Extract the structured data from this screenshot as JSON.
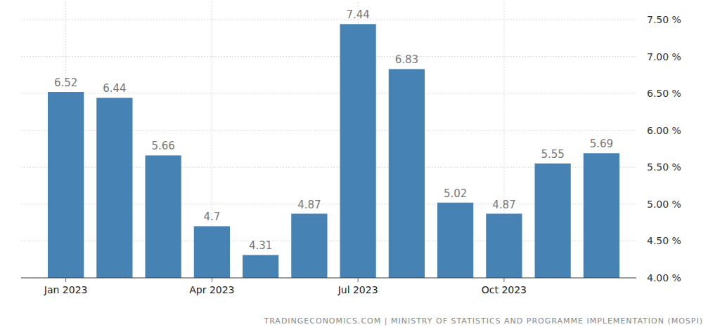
{
  "chart_data": {
    "type": "bar",
    "categories": [
      "Jan 2023",
      null,
      null,
      "Apr 2023",
      null,
      null,
      "Jul 2023",
      null,
      null,
      "Oct 2023",
      null,
      null
    ],
    "values": [
      6.52,
      6.44,
      5.66,
      4.7,
      4.31,
      4.87,
      7.44,
      6.83,
      5.02,
      4.87,
      5.55,
      5.69
    ],
    "color": "#4682b4",
    "ylim": [
      4,
      7.5
    ],
    "yticks": [
      {
        "value": 4,
        "label": "4.00 %"
      },
      {
        "value": 4.5,
        "label": "4.50 %"
      },
      {
        "value": 5,
        "label": "5.00 %"
      },
      {
        "value": 5.5,
        "label": "5.50 %"
      },
      {
        "value": 6,
        "label": "6.00 %"
      },
      {
        "value": 6.5,
        "label": "6.50 %"
      },
      {
        "value": 7,
        "label": "7.00 %"
      },
      {
        "value": 7.5,
        "label": "7.50 %"
      }
    ],
    "grid": true,
    "data_labels": true,
    "source": "TRADINGECONOMICS.COM | MINISTRY OF STATISTICS AND PROGRAMME IMPLEMENTATION (MOSPI)"
  }
}
